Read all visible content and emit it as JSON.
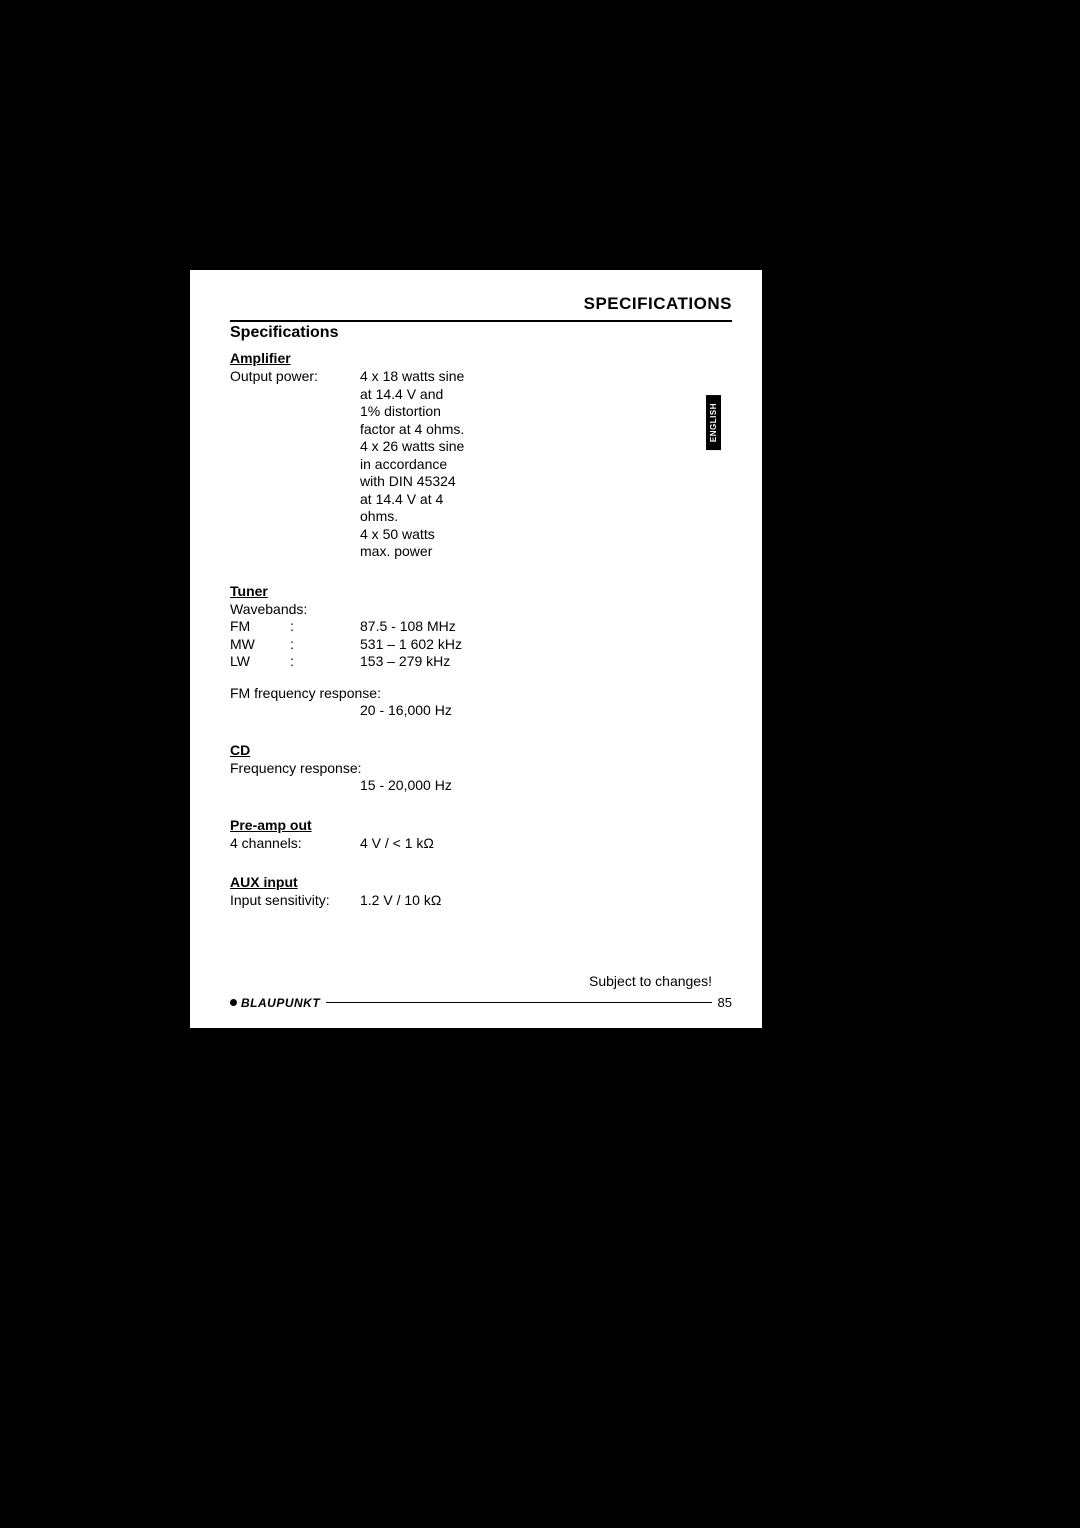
{
  "header": {
    "page_title_caps": "SPECIFICATIONS",
    "section_title": "Specifications"
  },
  "language_tab": "ENGLISH",
  "amplifier": {
    "title": "Amplifier",
    "row_label": "Output power:",
    "value_lines": [
      "4 x 18 watts sine",
      "at 14.4 V and",
      "1% distortion",
      "factor at 4 ohms.",
      "4 x 26 watts sine",
      "in accordance",
      "with DIN 45324",
      "at 14.4 V at 4",
      "ohms.",
      "4 x 50 watts",
      "max. power"
    ]
  },
  "tuner": {
    "title": "Tuner",
    "wavebands_label": "Wavebands:",
    "bands": [
      {
        "name": "FM",
        "colon": ":",
        "value": "87.5 - 108 MHz"
      },
      {
        "name": "MW",
        "colon": ":",
        "value": "531 – 1 602 kHz"
      },
      {
        "name": "LW",
        "colon": ":",
        "value": "153 – 279 kHz"
      }
    ],
    "fm_freq_label": "FM frequency response:",
    "fm_freq_value": "20 - 16,000 Hz"
  },
  "cd": {
    "title": "CD",
    "freq_label": "Frequency response:",
    "freq_value": "15 - 20,000 Hz"
  },
  "preamp": {
    "title": "Pre-amp out",
    "label": "4 channels:",
    "value": "4 V / < 1 kΩ"
  },
  "aux": {
    "title": "AUX input",
    "label": "Input sensitivity:",
    "value": "1.2 V / 10 kΩ"
  },
  "footer": {
    "subject": "Subject to changes!",
    "brand": "BLAUPUNKT",
    "page_num": "85"
  },
  "colors": {
    "page_bg": "#ffffff",
    "outer_bg": "#000000",
    "text": "#000000"
  }
}
